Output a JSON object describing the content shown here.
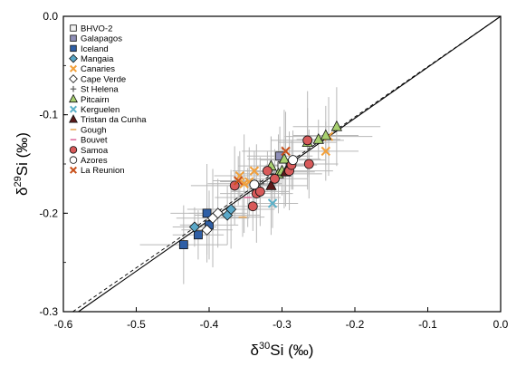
{
  "chart_data": {
    "type": "scatter",
    "title": "",
    "xlabel_parts": [
      "δ",
      "30",
      "Si (‰)"
    ],
    "ylabel_parts": [
      "δ",
      "29",
      "Si (‰)"
    ],
    "xlim": [
      -0.6,
      0.0
    ],
    "ylim": [
      -0.3,
      0.0
    ],
    "x_ticks": [
      "-0.6",
      "-0.5",
      "-0.4",
      "-0.3",
      "-0.2",
      "-0.1",
      "0.0"
    ],
    "y_ticks": [
      "0.0",
      "-0.1",
      "-0.2",
      "-0.3"
    ],
    "x_tick_values": [
      -0.6,
      -0.5,
      -0.4,
      -0.3,
      -0.2,
      -0.1,
      0.0
    ],
    "y_tick_values": [
      0.0,
      -0.1,
      -0.2,
      -0.3
    ],
    "grid": false,
    "legend_position": "top-left",
    "fractionation_lines": [
      {
        "style": "solid",
        "slope": 0.5178
      },
      {
        "style": "dashed",
        "slope": 0.511
      }
    ],
    "series": [
      {
        "name": "BHVO-2",
        "marker": "square",
        "fill": "#f2f2f2",
        "points": [
          [
            -0.3,
            -0.152
          ]
        ]
      },
      {
        "name": "Galapagos",
        "marker": "square",
        "fill": "#8f8fb8",
        "points": [
          [
            -0.303,
            -0.142
          ]
        ]
      },
      {
        "name": "Iceland",
        "marker": "square",
        "fill": "#2f5fa6",
        "points": [
          [
            -0.435,
            -0.232
          ],
          [
            -0.415,
            -0.222
          ],
          [
            -0.403,
            -0.2
          ],
          [
            -0.4,
            -0.212
          ]
        ]
      },
      {
        "name": "Mangaia",
        "marker": "diamond",
        "fill": "#5aa8c8",
        "points": [
          [
            -0.42,
            -0.214
          ],
          [
            -0.375,
            -0.202
          ],
          [
            -0.37,
            -0.196
          ]
        ]
      },
      {
        "name": "Canaries",
        "marker": "x",
        "fill": "#f2a03a",
        "points": [
          [
            -0.358,
            -0.162
          ],
          [
            -0.352,
            -0.17
          ],
          [
            -0.345,
            -0.168
          ],
          [
            -0.338,
            -0.157
          ],
          [
            -0.24,
            -0.137
          ],
          [
            -0.236,
            -0.122
          ]
        ]
      },
      {
        "name": "Cape Verde",
        "marker": "diamond",
        "fill": "#ffffff",
        "points": [
          [
            -0.403,
            -0.217
          ],
          [
            -0.395,
            -0.205
          ],
          [
            -0.388,
            -0.2
          ]
        ]
      },
      {
        "name": "St Helena",
        "marker": "plus",
        "fill": "#555555",
        "points": [
          [
            -0.33,
            -0.17
          ]
        ]
      },
      {
        "name": "Pitcairn",
        "marker": "triangle",
        "fill": "#a8d070",
        "points": [
          [
            -0.315,
            -0.152
          ],
          [
            -0.305,
            -0.16
          ],
          [
            -0.3,
            -0.157
          ],
          [
            -0.297,
            -0.145
          ],
          [
            -0.265,
            -0.128
          ],
          [
            -0.25,
            -0.125
          ],
          [
            -0.24,
            -0.121
          ],
          [
            -0.225,
            -0.112
          ]
        ]
      },
      {
        "name": "Kerguelen",
        "marker": "x",
        "fill": "#5ab0c8",
        "points": [
          [
            -0.313,
            -0.19
          ]
        ]
      },
      {
        "name": "Tristan da Cunha",
        "marker": "triangle",
        "fill": "#5a1a1a",
        "points": [
          [
            -0.315,
            -0.172
          ],
          [
            -0.295,
            -0.158
          ]
        ]
      },
      {
        "name": "Gough",
        "marker": "dash",
        "fill": "#e8a85a",
        "points": [
          [
            -0.354,
            -0.204
          ]
        ]
      },
      {
        "name": "Bouvet",
        "marker": "dash",
        "fill": "#e070a0",
        "points": [
          [
            -0.347,
            -0.184
          ]
        ]
      },
      {
        "name": "Samoa",
        "marker": "circle",
        "fill": "#d85a5a",
        "points": [
          [
            -0.365,
            -0.172
          ],
          [
            -0.34,
            -0.193
          ],
          [
            -0.335,
            -0.18
          ],
          [
            -0.33,
            -0.178
          ],
          [
            -0.32,
            -0.157
          ],
          [
            -0.31,
            -0.165
          ],
          [
            -0.29,
            -0.157
          ],
          [
            -0.287,
            -0.151
          ],
          [
            -0.265,
            -0.126
          ],
          [
            -0.263,
            -0.15
          ]
        ]
      },
      {
        "name": "Azores",
        "marker": "circle",
        "fill": "#ffffff",
        "points": [
          [
            -0.338,
            -0.171
          ],
          [
            -0.285,
            -0.146
          ]
        ]
      },
      {
        "name": "La Reunion",
        "marker": "x",
        "fill": "#c8501a",
        "points": [
          [
            -0.295,
            -0.137
          ],
          [
            -0.36,
            -0.167
          ]
        ]
      }
    ]
  }
}
